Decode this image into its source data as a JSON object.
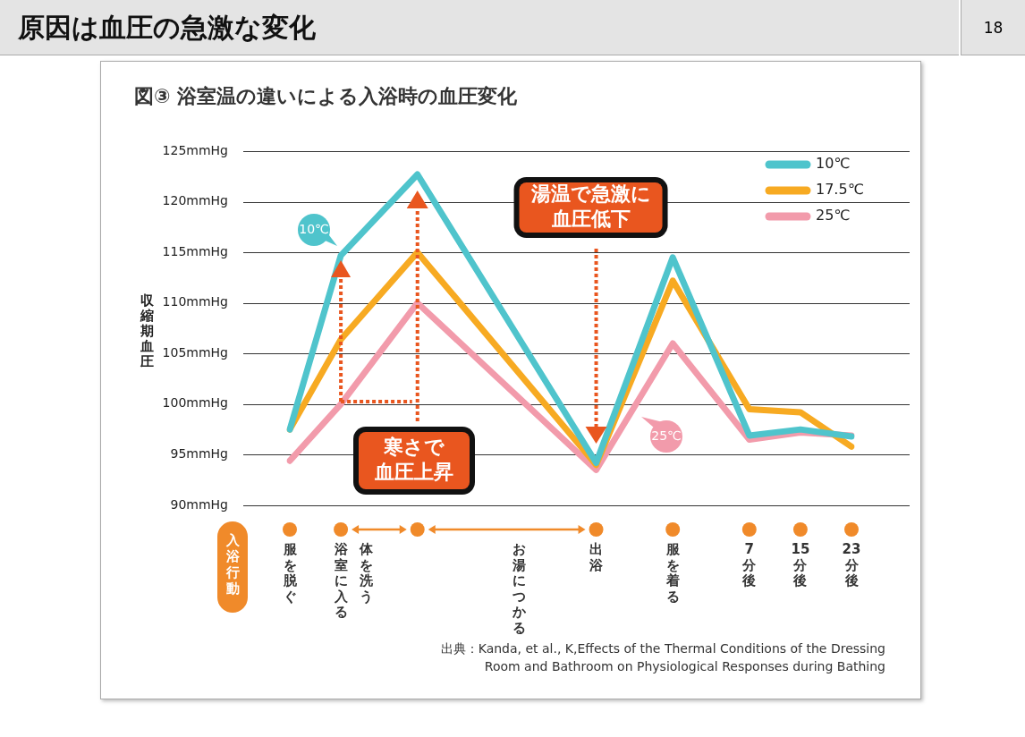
{
  "chart_data": {
    "type": "line",
    "title": "図③ 浴室温の違いによる入浴時の血圧変化",
    "xlabel": "入浴行動",
    "ylabel": "収縮期血圧",
    "categories": [
      "服を脱ぐ",
      null,
      "浴室に入る",
      "体を洗う",
      null,
      null,
      null,
      null,
      null,
      "お湯につかる",
      null,
      null,
      "出浴",
      null,
      null,
      "服を着る",
      null,
      null,
      "7分後",
      null,
      "15分後",
      null,
      "23分後"
    ],
    "series": [
      {
        "name": "10℃",
        "color": "#4fc4cc",
        "values": [
          97.5,
          null,
          114.7,
          null,
          null,
          122.7,
          null,
          null,
          null,
          null,
          null,
          null,
          94.2,
          null,
          null,
          114.5,
          null,
          null,
          96.9,
          null,
          97.5,
          null,
          96.8
        ]
      },
      {
        "name": "17.5℃",
        "color": "#f7aa22",
        "values": [
          97.5,
          null,
          106.4,
          null,
          null,
          115,
          null,
          null,
          null,
          null,
          null,
          null,
          94,
          null,
          null,
          112.2,
          null,
          null,
          99.5,
          null,
          99.2,
          null,
          95.8
        ]
      },
      {
        "name": "25℃",
        "color": "#f29bab",
        "values": [
          94.4,
          null,
          100,
          null,
          null,
          110,
          null,
          null,
          null,
          null,
          null,
          null,
          93.5,
          null,
          null,
          106,
          null,
          null,
          96.5,
          null,
          97.2,
          null,
          96.9
        ]
      }
    ],
    "ylim": [
      90,
      125
    ],
    "yticks": [
      {
        "value": 90,
        "label": "90mmHg"
      },
      {
        "value": 95,
        "label": "95mmHg"
      },
      {
        "value": 100,
        "label": "100mmHg"
      },
      {
        "value": 105,
        "label": "105mmHg"
      },
      {
        "value": 110,
        "label": "110mmHg"
      },
      {
        "value": 115,
        "label": "115mmHg"
      },
      {
        "value": 120,
        "label": "120mmHg"
      },
      {
        "value": 125,
        "label": "125mmHg"
      }
    ],
    "grid": "y",
    "legend": "top right",
    "marker": "none",
    "line_style": "solid",
    "annotations": [
      "原因は血圧の急激な変化",
      "18",
      "出典：Kanda, et al., K,Effects of the Thermal Conditions of the Dressing\nRoom and Bathroom on Physiological Responses during Bathing",
      "寒さで血圧上昇",
      "湯温で急激に血圧低下",
      "10℃",
      "25℃"
    ]
  }
}
